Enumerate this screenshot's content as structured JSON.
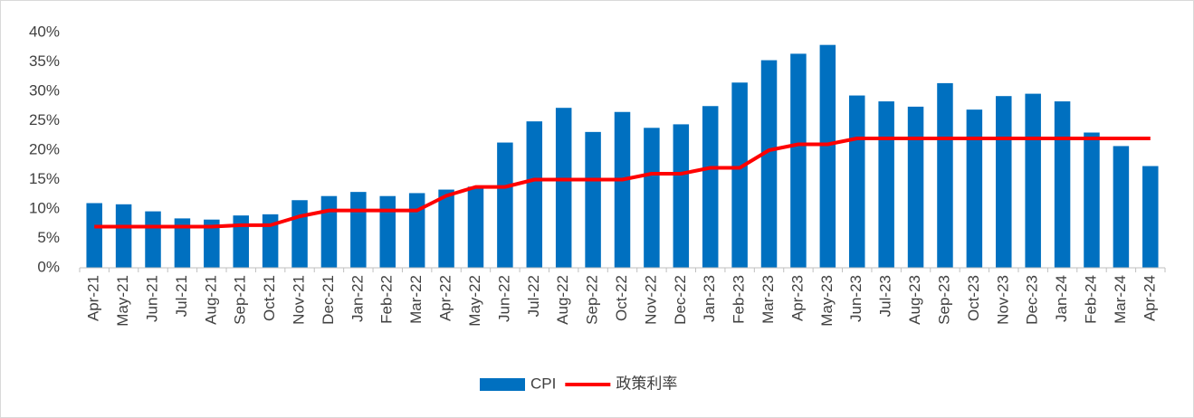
{
  "chart_data": {
    "type": "bar",
    "categories": [
      "Apr-21",
      "May-21",
      "Jun-21",
      "Jul-21",
      "Aug-21",
      "Sep-21",
      "Oct-21",
      "Nov-21",
      "Dec-21",
      "Jan-22",
      "Feb-22",
      "Mar-22",
      "Apr-22",
      "May-22",
      "Jun-22",
      "Jul-22",
      "Aug-22",
      "Sep-22",
      "Oct-22",
      "Nov-22",
      "Dec-22",
      "Jan-23",
      "Feb-23",
      "Mar-23",
      "Apr-23",
      "May-23",
      "Jun-23",
      "Jul-23",
      "Aug-23",
      "Sep-23",
      "Oct-23",
      "Nov-23",
      "Dec-23",
      "Jan-24",
      "Feb-24",
      "Mar-24",
      "Apr-24"
    ],
    "series": [
      {
        "name": "CPI",
        "type": "bar",
        "color": "#0070c0",
        "values": [
          11.0,
          10.8,
          9.6,
          8.4,
          8.2,
          8.9,
          9.1,
          11.5,
          12.2,
          12.9,
          12.2,
          12.7,
          13.3,
          13.8,
          21.3,
          24.9,
          27.2,
          23.1,
          26.5,
          23.8,
          24.4,
          27.5,
          31.5,
          35.3,
          36.4,
          37.9,
          29.3,
          28.3,
          27.4,
          31.4,
          26.9,
          29.2,
          29.6,
          28.3,
          23.0,
          20.7,
          17.3
        ]
      },
      {
        "name": "政策利率",
        "type": "line",
        "color": "#ff0000",
        "values": [
          7,
          7,
          7,
          7,
          7,
          7.25,
          7.25,
          8.75,
          9.75,
          9.75,
          9.75,
          9.75,
          12.25,
          13.75,
          13.75,
          15,
          15,
          15,
          15,
          16,
          16,
          17,
          17,
          20,
          21,
          21,
          22,
          22,
          22,
          22,
          22,
          22,
          22,
          22,
          22,
          22,
          22
        ]
      }
    ],
    "ylim": [
      0,
      40
    ],
    "yticks": [
      {
        "value": 0,
        "label": "0%"
      },
      {
        "value": 5,
        "label": "5%"
      },
      {
        "value": 10,
        "label": "10%"
      },
      {
        "value": 15,
        "label": "15%"
      },
      {
        "value": 20,
        "label": "20%"
      },
      {
        "value": 25,
        "label": "25%"
      },
      {
        "value": 30,
        "label": "30%"
      },
      {
        "value": 35,
        "label": "35%"
      },
      {
        "value": 40,
        "label": "40%"
      }
    ],
    "grid": false,
    "legend": "bottom"
  }
}
